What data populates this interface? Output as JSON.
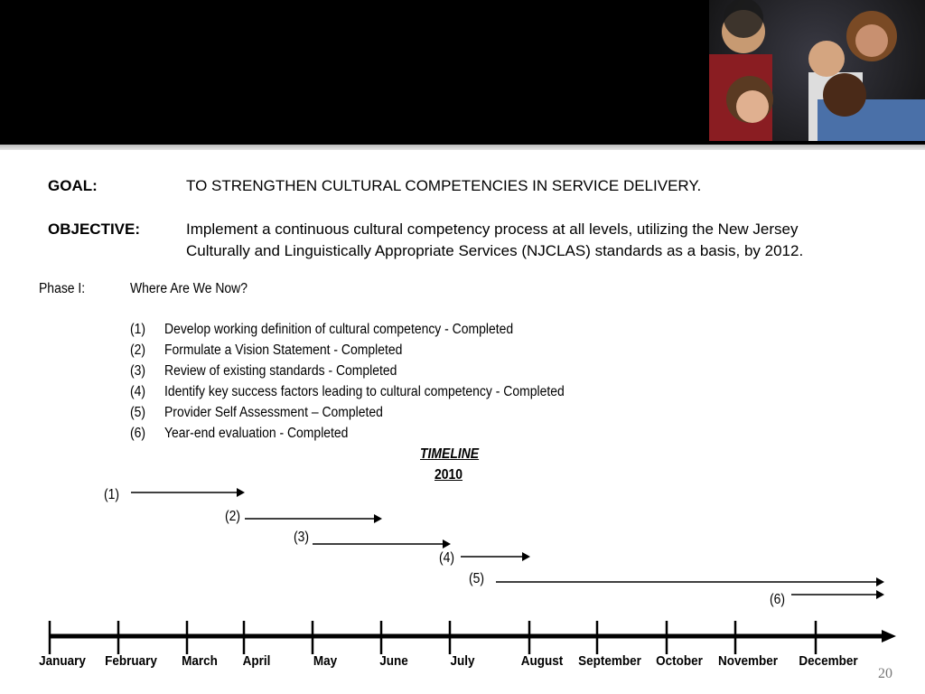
{
  "goal": {
    "label": "GOAL:",
    "text": "TO STRENGTHEN CULTURAL COMPETENCIES IN SERVICE DELIVERY."
  },
  "objective": {
    "label": "OBJECTIVE:",
    "line1": "Implement a continuous cultural competency process at all levels, utilizing the New Jersey",
    "line2": "Culturally and Linguistically Appropriate Services (NJCLAS) standards as a basis, by 2012."
  },
  "phase": {
    "label": "Phase I:",
    "title": "Where Are We Now?",
    "items": [
      {
        "num": "(1)",
        "text": "Develop working definition of cultural competency - Completed"
      },
      {
        "num": "(2)",
        "text": "Formulate a Vision Statement - Completed"
      },
      {
        "num": "(3)",
        "text": "Review of existing standards - Completed"
      },
      {
        "num": "(4)",
        "text": "Identify key success factors leading to cultural competency - Completed"
      },
      {
        "num": "(5)",
        "text": "Provider Self Assessment – Completed"
      },
      {
        "num": "(6)",
        "text": "Year-end evaluation - Completed"
      }
    ]
  },
  "timeline": {
    "title": "TIMELINE",
    "year": "2010",
    "months": [
      "January",
      "February",
      "March",
      "April",
      "May",
      "June",
      "July",
      "August",
      "September",
      "October",
      "November",
      "December"
    ],
    "bars": [
      {
        "label": "(1)",
        "start": "January",
        "end": "April"
      },
      {
        "label": "(2)",
        "start": "April",
        "end": "June"
      },
      {
        "label": "(3)",
        "start": "May",
        "end": "July"
      },
      {
        "label": "(4)",
        "start": "July",
        "end": "August"
      },
      {
        "label": "(5)",
        "start": "August",
        "end": "December+"
      },
      {
        "label": "(6)",
        "start": "December",
        "end": "December+"
      }
    ]
  },
  "page_number": "20"
}
